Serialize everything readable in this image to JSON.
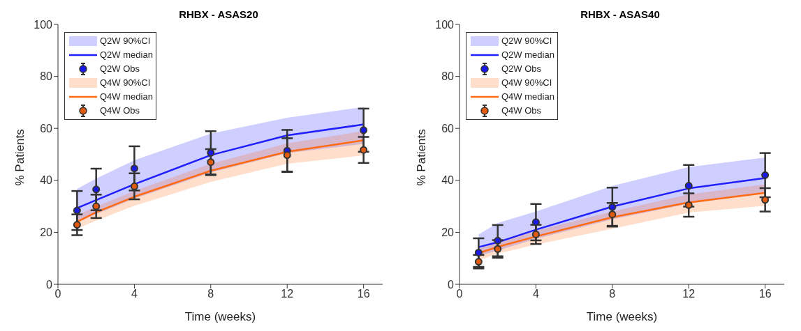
{
  "chart_data": [
    {
      "type": "line",
      "title": "RHBX - ASAS20",
      "xlabel": "Time (weeks)",
      "ylabel": "% Patients",
      "x": [
        1,
        2,
        4,
        8,
        12,
        16
      ],
      "xlim": [
        0,
        17
      ],
      "xticks": [
        0,
        4,
        8,
        12,
        16
      ],
      "ylim": [
        0,
        100
      ],
      "yticks": [
        0,
        20,
        40,
        60,
        80,
        100
      ],
      "grid": false,
      "legend": "top left",
      "annotations": [
        "Q2W 90%CI",
        "Q4W 90%CI"
      ],
      "series": [
        {
          "name": "Q2W median",
          "color": "#1f1fff",
          "values": [
            29.3,
            32.4,
            38.5,
            49.7,
            57.3,
            61.5
          ],
          "lower": [
            24,
            27,
            33,
            43,
            50.5,
            54
          ],
          "upper": [
            36.7,
            40.7,
            47.7,
            58,
            64.1,
            68.2
          ]
        },
        {
          "name": "Q2W Obs",
          "type": "scatter",
          "marker": "circle",
          "color": "#1a1ae6",
          "values": [
            28.4,
            36.5,
            44.6,
            50.6,
            51.4,
            59.3
          ],
          "errors": [
            7.5,
            8,
            8.5,
            8.3,
            8,
            8.3
          ]
        },
        {
          "name": "Q4W median",
          "color": "#ff6a13",
          "values": [
            24,
            27.7,
            33.7,
            43.7,
            51,
            55.4
          ],
          "lower": [
            21.4,
            24.5,
            30.2,
            39.4,
            46.4,
            49.6
          ],
          "upper": [
            26.7,
            29.9,
            35.9,
            46.4,
            54.2,
            59
          ]
        },
        {
          "name": "Q4W Obs",
          "type": "scatter",
          "marker": "circle",
          "color": "#e05a10",
          "values": [
            22.9,
            30,
            37.7,
            47,
            49.7,
            51.7
          ],
          "errors": [
            4,
            4.5,
            5,
            5,
            6.5,
            5
          ]
        }
      ]
    },
    {
      "type": "line",
      "title": "RHBX - ASAS40",
      "xlabel": "Time (weeks)",
      "ylabel": "% Patients",
      "x": [
        1,
        2,
        4,
        8,
        12,
        16
      ],
      "xlim": [
        0,
        17
      ],
      "xticks": [
        0,
        4,
        8,
        12,
        16
      ],
      "ylim": [
        0,
        100
      ],
      "yticks": [
        0,
        20,
        40,
        60,
        80,
        100
      ],
      "grid": false,
      "legend": "top left",
      "annotations": [
        "Q2W 90%CI",
        "Q4W 90%CI"
      ],
      "series": [
        {
          "name": "Q2W median",
          "color": "#1f1fff",
          "values": [
            14.3,
            16.2,
            21,
            29.9,
            36.9,
            40.9
          ],
          "lower": [
            11,
            13,
            17.5,
            25,
            31,
            35
          ],
          "upper": [
            19.2,
            23.6,
            28,
            37.9,
            45.1,
            48.8
          ]
        },
        {
          "name": "Q2W Obs",
          "type": "scatter",
          "marker": "circle",
          "color": "#1a1ae6",
          "values": [
            12.2,
            16.8,
            23.9,
            29.7,
            37.9,
            42
          ],
          "errors": [
            5.5,
            6,
            7,
            7.5,
            8,
            8.5
          ]
        },
        {
          "name": "Q4W median",
          "color": "#ff6a13",
          "values": [
            12,
            14.4,
            18.4,
            25.8,
            31.5,
            35.2
          ],
          "lower": [
            9.2,
            11.8,
            15.3,
            21.4,
            27.6,
            30.2
          ],
          "upper": [
            13.6,
            16.2,
            20.6,
            28,
            34.6,
            38.5
          ]
        },
        {
          "name": "Q4W Obs",
          "type": "scatter",
          "marker": "circle",
          "color": "#e05a10",
          "values": [
            8.7,
            13.6,
            19.2,
            26.9,
            30.5,
            32.5
          ],
          "errors": [
            2.6,
            3.4,
            3.7,
            4.4,
            4.5,
            4.5
          ]
        }
      ]
    }
  ]
}
